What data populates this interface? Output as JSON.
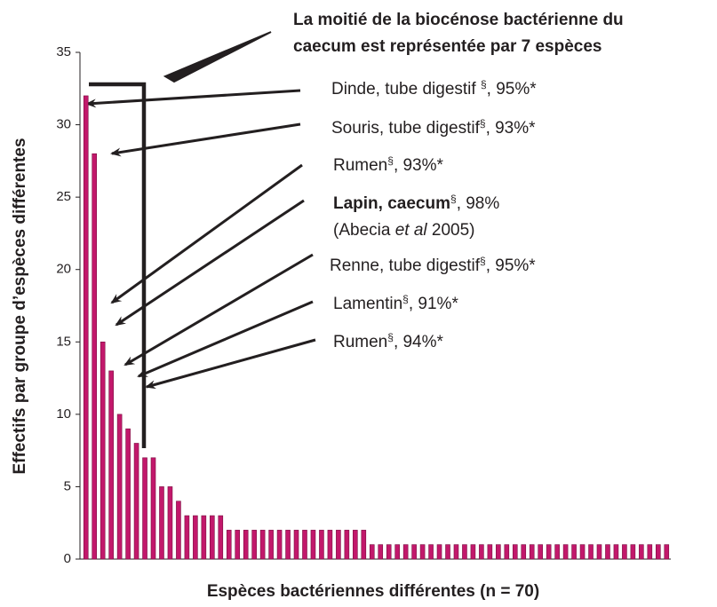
{
  "chart_data": {
    "type": "bar",
    "title_lines": [
      "La moitié de la biocénose bactérienne du",
      "caecum est représentée par 7 espèces"
    ],
    "x_label": "Espèces bactériennes différentes (n = 70)",
    "y_label": "Effectifs par groupe d’espèces différentes",
    "categories": [
      null,
      null,
      null,
      null,
      null,
      null,
      null,
      null,
      null,
      null,
      null,
      null,
      null,
      null,
      null,
      null,
      null,
      null,
      null,
      null,
      null,
      null,
      null,
      null,
      null,
      null,
      null,
      null,
      null,
      null,
      null,
      null,
      null,
      null,
      null,
      null,
      null,
      null,
      null,
      null,
      null,
      null,
      null,
      null,
      null,
      null,
      null,
      null,
      null,
      null,
      null,
      null,
      null,
      null,
      null,
      null,
      null,
      null,
      null,
      null,
      null,
      null,
      null,
      null,
      null,
      null,
      null,
      null,
      null,
      null
    ],
    "values": [
      32,
      28,
      15,
      13,
      10,
      9,
      8,
      7,
      7,
      5,
      5,
      4,
      3,
      3,
      3,
      3,
      3,
      2,
      2,
      2,
      2,
      2,
      2,
      2,
      2,
      2,
      2,
      2,
      2,
      2,
      2,
      2,
      2,
      2,
      1,
      1,
      1,
      1,
      1,
      1,
      1,
      1,
      1,
      1,
      1,
      1,
      1,
      1,
      1,
      1,
      1,
      1,
      1,
      1,
      1,
      1,
      1,
      1,
      1,
      1,
      1,
      1,
      1,
      1,
      1,
      1,
      1,
      1,
      1,
      1
    ],
    "color": "#c2186b",
    "ylim": [
      0,
      35
    ],
    "yticks": [
      0,
      5,
      10,
      15,
      20,
      25,
      30,
      35
    ],
    "grid": false,
    "annotations": [
      {
        "lines": [
          [
            {
              "text": "Dinde, tube digestif "
            },
            {
              "text": "§",
              "style": "sup"
            },
            {
              "text": ", 95%*"
            }
          ]
        ]
      },
      {
        "lines": [
          [
            {
              "text": "Souris, tube digestif"
            },
            {
              "text": "§",
              "style": "sup"
            },
            {
              "text": ", 93%*"
            }
          ]
        ]
      },
      {
        "lines": [
          [
            {
              "text": "Rumen"
            },
            {
              "text": "§",
              "style": "sup"
            },
            {
              "text": ", 93%*"
            }
          ]
        ]
      },
      {
        "lines": [
          [
            {
              "text": "Lapin, caecum",
              "style": "bold"
            },
            {
              "text": "§",
              "style": "sup"
            },
            {
              "text": ", 98%"
            }
          ],
          [
            {
              "text": "(Abecia "
            },
            {
              "text": "et al",
              "style": "italic"
            },
            {
              "text": " 2005)"
            }
          ]
        ]
      },
      {
        "lines": [
          [
            {
              "text": "Renne, tube digestif"
            },
            {
              "text": "§",
              "style": "sup"
            },
            {
              "text": ", 95%*"
            }
          ]
        ]
      },
      {
        "lines": [
          [
            {
              "text": "Lamentin"
            },
            {
              "text": "§",
              "style": "sup"
            },
            {
              "text": ", 91%*"
            }
          ]
        ]
      },
      {
        "lines": [
          [
            {
              "text": "Rumen"
            },
            {
              "text": "§",
              "style": "sup"
            },
            {
              "text": ", 94%*"
            }
          ]
        ]
      }
    ]
  }
}
